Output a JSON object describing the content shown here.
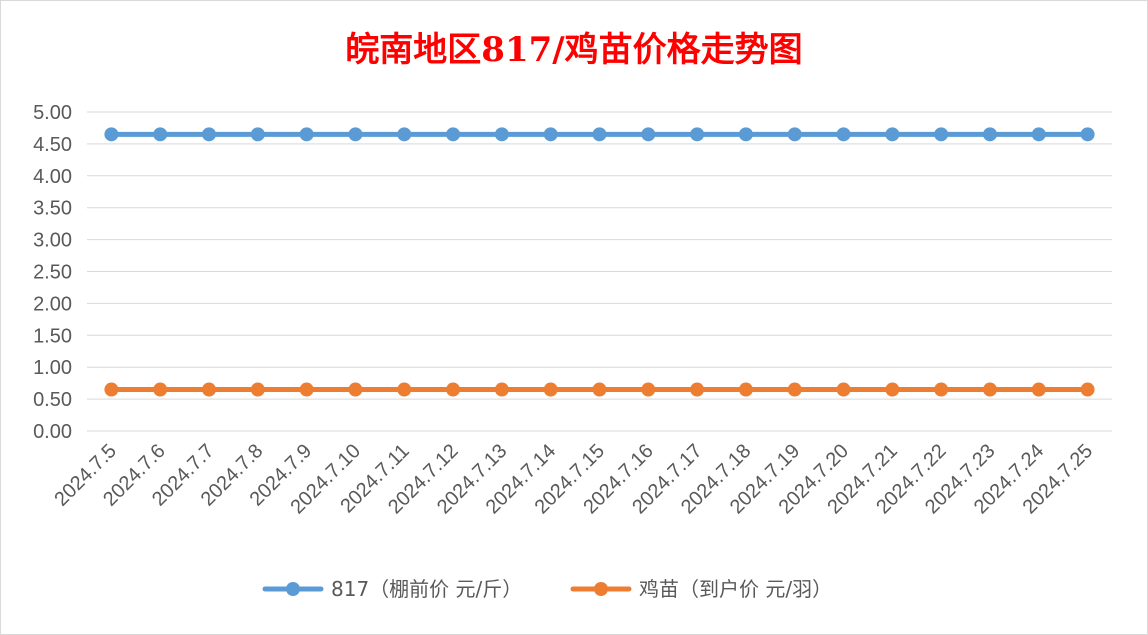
{
  "chart_data": {
    "type": "line",
    "title": "皖南地区817/鸡苗价格走势图",
    "xlabel": "",
    "ylabel": "",
    "ylim": [
      0,
      5
    ],
    "y_ticks": [
      "0.00",
      "0.50",
      "1.00",
      "1.50",
      "2.00",
      "2.50",
      "3.00",
      "3.50",
      "4.00",
      "4.50",
      "5.00"
    ],
    "grid": "horizontal",
    "legend_position": "bottom",
    "categories": [
      "2024.7.5",
      "2024.7.6",
      "2024.7.7",
      "2024.7.8",
      "2024.7.9",
      "2024.7.10",
      "2024.7.11",
      "2024.7.12",
      "2024.7.13",
      "2024.7.14",
      "2024.7.15",
      "2024.7.16",
      "2024.7.17",
      "2024.7.18",
      "2024.7.19",
      "2024.7.20",
      "2024.7.21",
      "2024.7.22",
      "2024.7.23",
      "2024.7.24",
      "2024.7.25"
    ],
    "series": [
      {
        "name": "817（棚前价 元/斤）",
        "color": "#5b9bd5",
        "values": [
          4.65,
          4.65,
          4.65,
          4.65,
          4.65,
          4.65,
          4.65,
          4.65,
          4.65,
          4.65,
          4.65,
          4.65,
          4.65,
          4.65,
          4.65,
          4.65,
          4.65,
          4.65,
          4.65,
          4.65,
          4.65
        ]
      },
      {
        "name": "鸡苗（到户价 元/羽）",
        "color": "#ed7d31",
        "values": [
          0.65,
          0.65,
          0.65,
          0.65,
          0.65,
          0.65,
          0.65,
          0.65,
          0.65,
          0.65,
          0.65,
          0.65,
          0.65,
          0.65,
          0.65,
          0.65,
          0.65,
          0.65,
          0.65,
          0.65,
          0.65
        ]
      }
    ]
  }
}
